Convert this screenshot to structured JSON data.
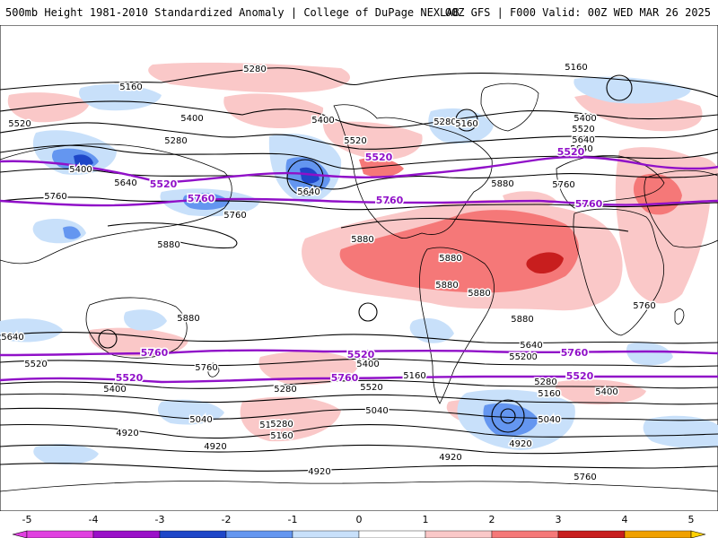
{
  "header": {
    "title": "500mb Height 1981-2010 Standardized Anomaly | College of DuPage NEXLAB",
    "run_info": "00Z GFS | F000 Valid: 00Z WED MAR 26 2025"
  },
  "colors": {
    "contour": "#000000",
    "highlight_contour": "#9010c8",
    "anom_pos_1": "#fac8c8",
    "anom_pos_2": "#f57878",
    "anom_pos_3": "#c81e1e",
    "anom_neg_1": "#c8e0fa",
    "anom_neg_2": "#6496f0",
    "anom_neg_3": "#1e46c8",
    "coastline": "#000000"
  },
  "contour_labels": [
    {
      "text": "5280"
    },
    {
      "text": "5160"
    },
    {
      "text": "5160"
    },
    {
      "text": "5520"
    },
    {
      "text": "5400"
    },
    {
      "text": "5280"
    },
    {
      "text": "5400"
    },
    {
      "text": "5520"
    },
    {
      "text": "5400"
    },
    {
      "text": "5640"
    },
    {
      "text": "5760"
    },
    {
      "text": "5880"
    },
    {
      "text": "5760"
    },
    {
      "text": "5640"
    },
    {
      "text": "5280"
    },
    {
      "text": "5160"
    },
    {
      "text": "5400"
    },
    {
      "text": "5520"
    },
    {
      "text": "5640"
    },
    {
      "text": "5760"
    },
    {
      "text": "5880"
    },
    {
      "text": "5880"
    },
    {
      "text": "5880"
    },
    {
      "text": "5880"
    },
    {
      "text": "5880"
    },
    {
      "text": "5760"
    },
    {
      "text": "5640"
    },
    {
      "text": "5160"
    },
    {
      "text": "5520"
    },
    {
      "text": "5400"
    },
    {
      "text": "5280"
    },
    {
      "text": "5160"
    },
    {
      "text": "5040"
    },
    {
      "text": "4920"
    },
    {
      "text": "4920"
    },
    {
      "text": "4920"
    },
    {
      "text": "5760"
    },
    {
      "text": "5640"
    },
    {
      "text": "5520"
    },
    {
      "text": "5400"
    },
    {
      "text": "5760"
    },
    {
      "text": "5640"
    },
    {
      "text": "5520"
    },
    {
      "text": "5400"
    },
    {
      "text": "5280"
    },
    {
      "text": "5160"
    },
    {
      "text": "5040"
    },
    {
      "text": "4920"
    },
    {
      "text": "4920"
    },
    {
      "text": "5280"
    },
    {
      "text": "5160"
    },
    {
      "text": "5040"
    },
    {
      "text": "5880"
    },
    {
      "text": "5880"
    },
    {
      "text": "5640"
    }
  ],
  "highlight_labels": [
    {
      "text": "5520"
    },
    {
      "text": "5760"
    },
    {
      "text": "5520"
    },
    {
      "text": "5760"
    },
    {
      "text": "5520"
    },
    {
      "text": "5760"
    },
    {
      "text": "5760"
    },
    {
      "text": "5520"
    },
    {
      "text": "5760"
    },
    {
      "text": "5520"
    },
    {
      "text": "5760"
    },
    {
      "text": "5520"
    }
  ],
  "colorbar": {
    "ticks": [
      "-5",
      "-4",
      "-3",
      "-2",
      "-1",
      "0",
      "1",
      "2",
      "3",
      "4",
      "5"
    ],
    "colors": [
      "#e040e0",
      "#9a10c8",
      "#1e46c8",
      "#6496f0",
      "#c8e0fa",
      "#ffffff",
      "#fac8c8",
      "#f57878",
      "#c81e1e",
      "#f0a000",
      "#ffd000"
    ]
  }
}
